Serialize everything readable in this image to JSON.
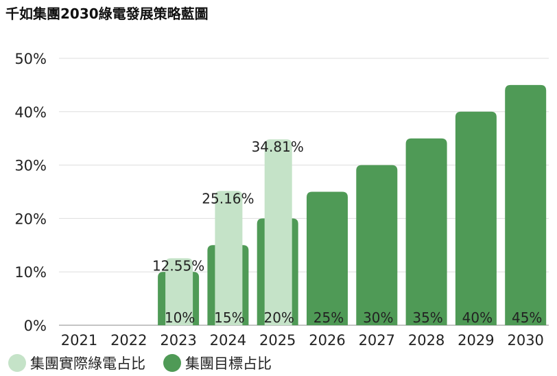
{
  "title": "千如集團2030綠電發展策略藍圖",
  "colors": {
    "actual": "#c5e3c8",
    "target": "#4f9a56",
    "grid": "#dddddd"
  },
  "chart_data": {
    "type": "bar",
    "title": "千如集團2030綠電發展策略藍圖",
    "categories": [
      "2021",
      "2022",
      "2023",
      "2024",
      "2025",
      "2026",
      "2027",
      "2028",
      "2029",
      "2030"
    ],
    "series": [
      {
        "name": "集團實際綠電占比",
        "values": [
          0,
          0,
          12.55,
          25.16,
          34.81,
          null,
          null,
          null,
          null,
          null
        ],
        "labels": [
          "",
          "",
          "12.55%",
          "25.16%",
          "34.81%",
          "",
          "",
          "",
          "",
          ""
        ]
      },
      {
        "name": "集團目標占比",
        "values": [
          0,
          0,
          10,
          15,
          20,
          25,
          30,
          35,
          40,
          45
        ],
        "labels": [
          "",
          "",
          "10%",
          "15%",
          "20%",
          "25%",
          "30%",
          "35%",
          "40%",
          "45%"
        ]
      }
    ],
    "yticks": [
      "0%",
      "10%",
      "20%",
      "30%",
      "40%",
      "50%"
    ],
    "ylim": [
      0,
      50
    ],
    "grid": true,
    "legend_position": "bottom-left"
  }
}
